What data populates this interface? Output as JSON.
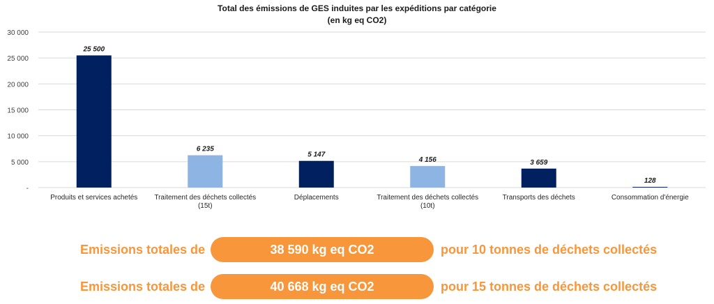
{
  "chart_data": {
    "type": "bar",
    "title": "Total des émissions de GES induites par les expéditions par catégorie",
    "subtitle": "(en kg eq CO2)",
    "categories": [
      [
        "Produits et services achetés"
      ],
      [
        "Traitement des déchets collectés",
        "(15t)"
      ],
      [
        "Déplacements"
      ],
      [
        "Traitement des déchets collectés",
        "(10t)"
      ],
      [
        "Transports des déchets"
      ],
      [
        "Consommation d'énergie"
      ]
    ],
    "values": [
      25500,
      6235,
      5147,
      4156,
      3659,
      128
    ],
    "data_labels": [
      "25 500",
      "6 235",
      "5 147",
      "4 156",
      "3 659",
      "128"
    ],
    "bar_colors": [
      "#002060",
      "#8eb4e3",
      "#002060",
      "#8eb4e3",
      "#002060",
      "#002060"
    ],
    "ylim": [
      0,
      30000
    ],
    "yticks": [
      0,
      5000,
      10000,
      15000,
      20000,
      25000,
      30000
    ],
    "ytick_labels": [
      "-",
      "5 000",
      "10 000",
      "15 000",
      "20 000",
      "25 000",
      "30 000"
    ],
    "grid": true,
    "xlabel": "",
    "ylabel": ""
  },
  "summary": [
    {
      "prefix": "Emissions totales de",
      "value": "38 590 kg eq CO2",
      "suffix": "pour 10 tonnes de déchets collectés"
    },
    {
      "prefix": "Emissions totales de",
      "value": "40 668 kg eq CO2",
      "suffix": "pour 15 tonnes de déchets collectés"
    }
  ],
  "colors": {
    "accent": "#f7963a",
    "dark_bar": "#002060",
    "light_bar": "#8eb4e3",
    "grid": "#d9d9d9"
  }
}
